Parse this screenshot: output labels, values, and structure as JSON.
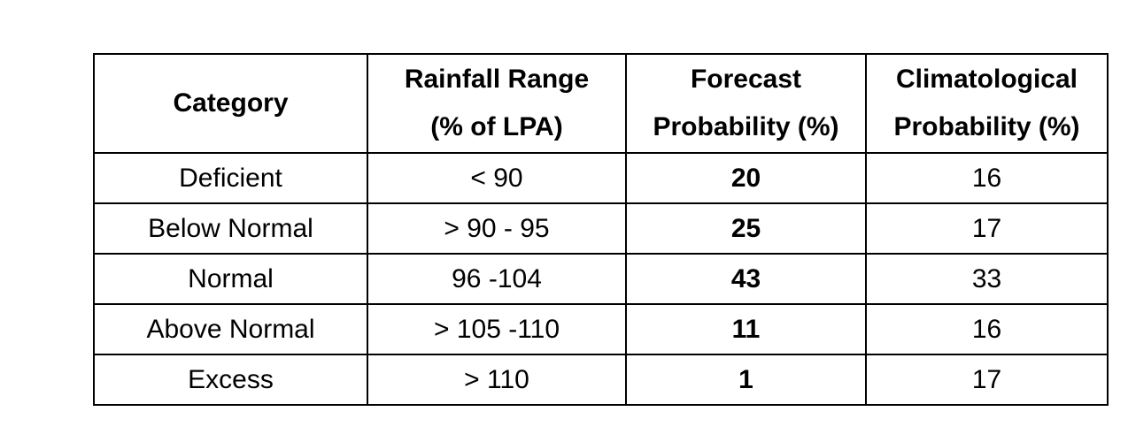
{
  "table": {
    "headers": {
      "category": "Category",
      "rainfall_range_line1": "Rainfall Range",
      "rainfall_range_line2": "(% of LPA)",
      "forecast_line1": "Forecast",
      "forecast_line2": "Probability (%)",
      "climatological_line1": "Climatological",
      "climatological_line2": "Probability (%)"
    },
    "rows": [
      {
        "category": "Deficient",
        "range": "< 90",
        "forecast": "20",
        "climatological": "16"
      },
      {
        "category": "Below Normal",
        "range": "> 90 - 95",
        "forecast": "25",
        "climatological": "17"
      },
      {
        "category": "Normal",
        "range": "96 -104",
        "forecast": "43",
        "climatological": "33"
      },
      {
        "category": "Above Normal",
        "range": "> 105 -110",
        "forecast": "11",
        "climatological": "16"
      },
      {
        "category": "Excess",
        "range": "> 110",
        "forecast": "1",
        "climatological": "17"
      }
    ]
  }
}
